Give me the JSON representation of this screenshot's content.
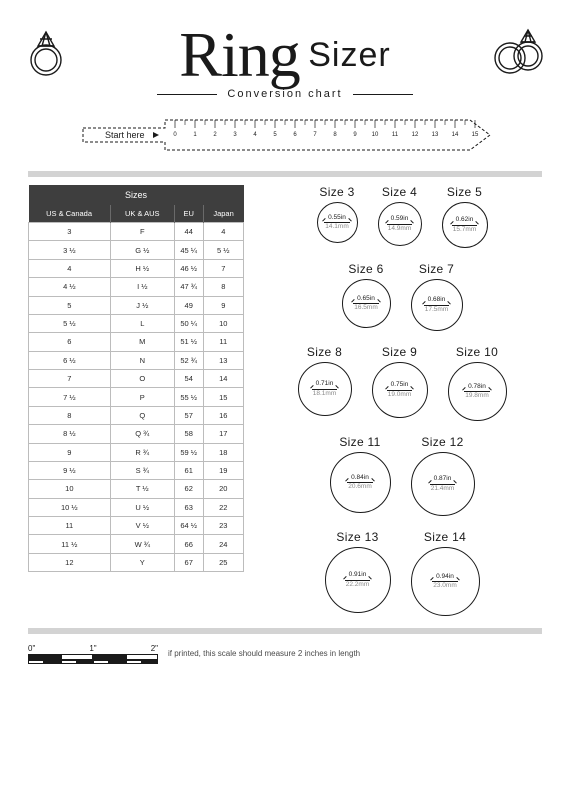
{
  "header": {
    "title_script": "Ring",
    "title_sans": "Sizer",
    "subtitle": "Conversion chart"
  },
  "ruler": {
    "start_label": "Start here",
    "ticks": [
      "0",
      "1",
      "2",
      "3",
      "4",
      "5",
      "6",
      "7",
      "8",
      "9",
      "10",
      "11",
      "12",
      "13",
      "14",
      "15"
    ]
  },
  "table": {
    "title": "Sizes",
    "columns": [
      "US & Canada",
      "UK & AUS",
      "EU",
      "Japan"
    ],
    "rows": [
      [
        "3",
        "F",
        "44",
        "4"
      ],
      [
        "3 ½",
        "G ½",
        "45 ¼",
        "5 ½"
      ],
      [
        "4",
        "H ½",
        "46 ½",
        "7"
      ],
      [
        "4 ½",
        "I ½",
        "47 ¾",
        "8"
      ],
      [
        "5",
        "J ½",
        "49",
        "9"
      ],
      [
        "5 ½",
        "L",
        "50 ¼",
        "10"
      ],
      [
        "6",
        "M",
        "51 ½",
        "11"
      ],
      [
        "6 ½",
        "N",
        "52 ¾",
        "13"
      ],
      [
        "7",
        "O",
        "54",
        "14"
      ],
      [
        "7 ½",
        "P",
        "55 ½",
        "15"
      ],
      [
        "8",
        "Q",
        "57",
        "16"
      ],
      [
        "8 ½",
        "Q ¾",
        "58",
        "17"
      ],
      [
        "9",
        "R ¾",
        "59 ½",
        "18"
      ],
      [
        "9 ½",
        "S ¾",
        "61",
        "19"
      ],
      [
        "10",
        "T ½",
        "62",
        "20"
      ],
      [
        "10 ½",
        "U ½",
        "63",
        "22"
      ],
      [
        "11",
        "V ½",
        "64 ½",
        "23"
      ],
      [
        "11 ½",
        "W ¾",
        "66",
        "24"
      ],
      [
        "12",
        "Y",
        "67",
        "25"
      ]
    ]
  },
  "circles": {
    "groups": [
      [
        {
          "label": "Size 3",
          "in": "0.55in",
          "mm": "14.1mm",
          "d": 41
        },
        {
          "label": "Size 4",
          "in": "0.59in",
          "mm": "14.9mm",
          "d": 44
        },
        {
          "label": "Size 5",
          "in": "0.62in",
          "mm": "15.7mm",
          "d": 46
        }
      ],
      [
        {
          "label": "Size 6",
          "in": "0.65in",
          "mm": "16.5mm",
          "d": 49
        },
        {
          "label": "Size 7",
          "in": "0.68in",
          "mm": "17.5mm",
          "d": 52
        }
      ],
      [
        {
          "label": "Size 8",
          "in": "0.71in",
          "mm": "18.1mm",
          "d": 54
        },
        {
          "label": "Size 9",
          "in": "0.75in",
          "mm": "19.0mm",
          "d": 56
        },
        {
          "label": "Size 10",
          "in": "0.78in",
          "mm": "19.8mm",
          "d": 59
        }
      ],
      [
        {
          "label": "Size 11",
          "in": "0.84in",
          "mm": "20.6mm",
          "d": 61
        },
        {
          "label": "Size 12",
          "in": "0.87in",
          "mm": "21.4mm",
          "d": 64
        }
      ],
      [
        {
          "label": "Size 13",
          "in": "0.91in",
          "mm": "22.2mm",
          "d": 66
        },
        {
          "label": "Size 14",
          "in": "0.94in",
          "mm": "23.0mm",
          "d": 69
        }
      ]
    ]
  },
  "footer": {
    "scale_labels": [
      "0\"",
      "1\"",
      "2\""
    ],
    "note": "if printed, this scale should measure 2 inches in length"
  },
  "style": {
    "bg": "#ffffff",
    "fg": "#1a1a1a",
    "table_header_bg": "#3e3e3e",
    "table_border": "#bcbcbc",
    "muted": "#8a8a8a",
    "divider": "#d3d3d3"
  }
}
